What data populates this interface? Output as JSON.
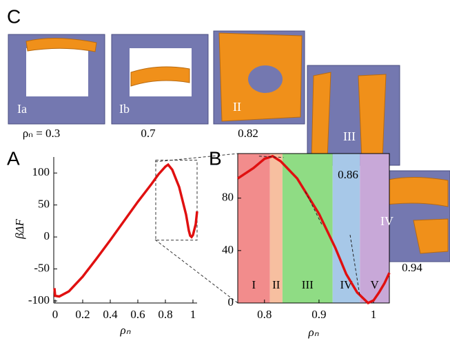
{
  "panel_labels": [
    "C",
    "A",
    "B"
  ],
  "snapshots": [
    {
      "label": "Ia",
      "caption": "ρₙ = 0.3"
    },
    {
      "label": "Ib",
      "caption": "0.7"
    },
    {
      "label": "II",
      "caption": "0.82"
    },
    {
      "label": "III",
      "caption": "0.86"
    },
    {
      "label": "IV",
      "caption": "0.94"
    }
  ],
  "chart_data": [
    {
      "type": "line",
      "x_label": "ρₙ",
      "y_label": "βΔF",
      "color": "#e01010",
      "x": [
        -0.005,
        0,
        0.03,
        0.1,
        0.2,
        0.3,
        0.4,
        0.5,
        0.6,
        0.7,
        0.75,
        0.8,
        0.82,
        0.85,
        0.9,
        0.95,
        0.97,
        0.98,
        0.99,
        1.0,
        1.02,
        1.03
      ],
      "values": [
        -80,
        -92,
        -93,
        -85,
        -62,
        -34,
        -5,
        25,
        55,
        83,
        98,
        110,
        113,
        105,
        78,
        35,
        10,
        2,
        0,
        3,
        20,
        40
      ],
      "xlim": [
        -0.01,
        1.03
      ],
      "ylim": [
        -100,
        125
      ],
      "xticks": [
        0,
        0.2,
        0.4,
        0.6,
        0.8,
        1
      ],
      "yticks": [
        -100,
        -50,
        0,
        50,
        100
      ]
    },
    {
      "type": "line",
      "x_label": "ρₙ",
      "color": "#e01010",
      "x": [
        0.751,
        0.78,
        0.8,
        0.815,
        0.83,
        0.86,
        0.9,
        0.93,
        0.95,
        0.97,
        0.99,
        1.0,
        1.01,
        1.02,
        1.029
      ],
      "values": [
        95,
        103,
        110,
        112,
        108,
        95,
        68,
        42,
        22,
        8,
        0,
        2,
        8,
        15,
        23
      ],
      "xlim": [
        0.751,
        1.029
      ],
      "ylim": [
        0,
        114
      ],
      "xticks": [
        0.8,
        0.9,
        1
      ],
      "yticks": [
        0,
        40,
        80
      ],
      "regions": [
        {
          "label": "I",
          "from": 0.751,
          "to": 0.81,
          "color": "#f28c8c"
        },
        {
          "label": "II",
          "from": 0.81,
          "to": 0.833,
          "color": "#f7bfa0"
        },
        {
          "label": "III",
          "from": 0.833,
          "to": 0.925,
          "color": "#8fdc84"
        },
        {
          "label": "IV",
          "from": 0.925,
          "to": 0.975,
          "color": "#a7c8e8"
        },
        {
          "label": "V",
          "from": 0.975,
          "to": 1.029,
          "color": "#c8a8d8"
        }
      ]
    }
  ]
}
